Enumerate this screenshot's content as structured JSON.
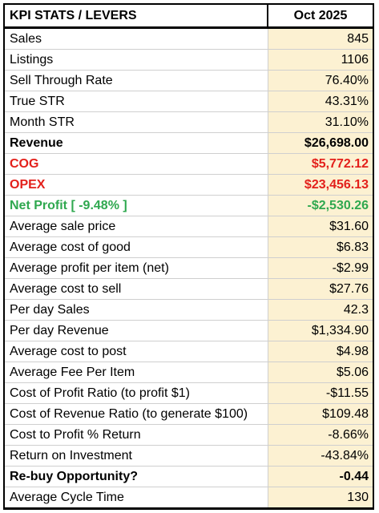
{
  "header": {
    "label": "KPI STATS / LEVERS",
    "value": "Oct 2025"
  },
  "rows": [
    {
      "label": "Sales",
      "value": "845",
      "style": ""
    },
    {
      "label": "Listings",
      "value": "1106",
      "style": ""
    },
    {
      "label": "Sell Through Rate",
      "value": "76.40%",
      "style": ""
    },
    {
      "label": "True STR",
      "value": "43.31%",
      "style": ""
    },
    {
      "label": "Month STR",
      "value": "31.10%",
      "style": ""
    },
    {
      "label": "Revenue",
      "value": "$26,698.00",
      "style": "bold"
    },
    {
      "label": "COG",
      "value": "$5,772.12",
      "style": "bold red"
    },
    {
      "label": "OPEX",
      "value": "$23,456.13",
      "style": "bold red"
    },
    {
      "label": "Net Profit [ -9.48% ]",
      "value": "-$2,530.26",
      "style": "bold green"
    },
    {
      "label": "Average sale price",
      "value": "$31.60",
      "style": ""
    },
    {
      "label": "Average cost of good",
      "value": "$6.83",
      "style": ""
    },
    {
      "label": "Average profit per item (net)",
      "value": "-$2.99",
      "style": ""
    },
    {
      "label": "Average cost to sell",
      "value": "$27.76",
      "style": ""
    },
    {
      "label": "Per day Sales",
      "value": "42.3",
      "style": ""
    },
    {
      "label": "Per day Revenue",
      "value": "$1,334.90",
      "style": ""
    },
    {
      "label": "Average cost to post",
      "value": "$4.98",
      "style": ""
    },
    {
      "label": "Average Fee Per Item",
      "value": "$5.06",
      "style": ""
    },
    {
      "label": "Cost of Profit Ratio (to profit $1)",
      "value": "-$11.55",
      "style": ""
    },
    {
      "label": "Cost of Revenue Ratio (to generate $100)",
      "value": "$109.48",
      "style": ""
    },
    {
      "label": "Cost to Profit % Return",
      "value": "-8.66%",
      "style": ""
    },
    {
      "label": "Return on Investment",
      "value": "-43.84%",
      "style": ""
    },
    {
      "label": "Re-buy Opportunity?",
      "value": "-0.44",
      "style": "bold"
    },
    {
      "label": "Average Cycle Time",
      "value": "130",
      "style": ""
    }
  ]
}
